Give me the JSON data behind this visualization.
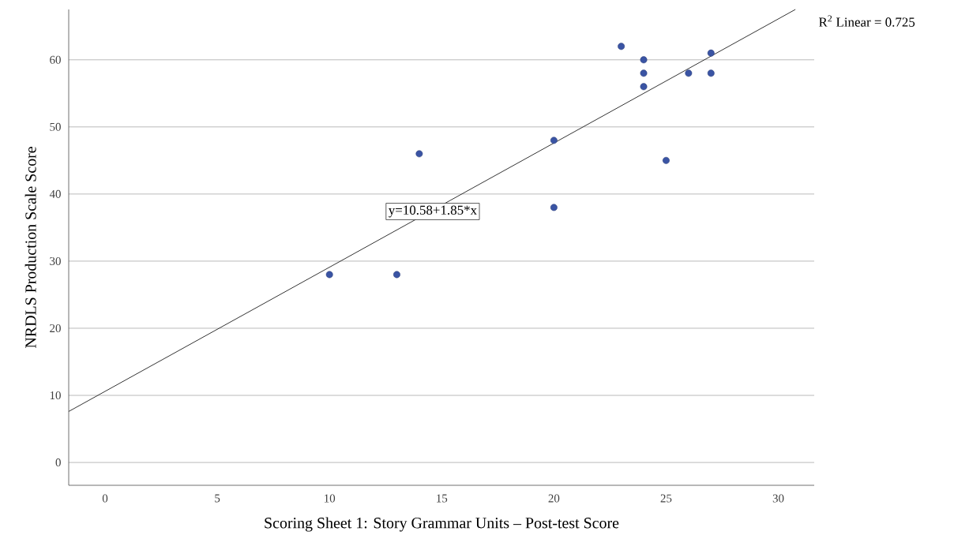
{
  "chart_data": {
    "type": "scatter",
    "xlabel": "Scoring Sheet 1: Story Grammar Units – Post-test Score",
    "ylabel": "NRDLS Production Scale Score",
    "xlim": [
      -1.62,
      31.6
    ],
    "ylim": [
      -3.4,
      67.5
    ],
    "xticks": [
      0,
      5,
      10,
      15,
      20,
      25,
      30
    ],
    "yticks": [
      0,
      10,
      20,
      30,
      40,
      50,
      60
    ],
    "grid": "y",
    "series": [
      {
        "marker": "circle",
        "color": "#3a54a4",
        "x": [
          10,
          13,
          14,
          20,
          20,
          23,
          24,
          24,
          24,
          25,
          26,
          27,
          27
        ],
        "values": [
          28,
          28,
          46,
          48,
          38,
          62,
          60,
          58,
          56,
          45,
          58,
          61,
          58
        ]
      },
      {
        "type": "line",
        "marker": "none",
        "color": "#333333",
        "x": [
          -1.62,
          30.76
        ],
        "values": [
          7.6,
          67.5
        ]
      }
    ],
    "annotations": [
      "R$^{2}$ Linear = 0.725",
      {
        "text": "y=10.58+1.85*x",
        "x": 14.6,
        "y": 37.4
      }
    ]
  }
}
